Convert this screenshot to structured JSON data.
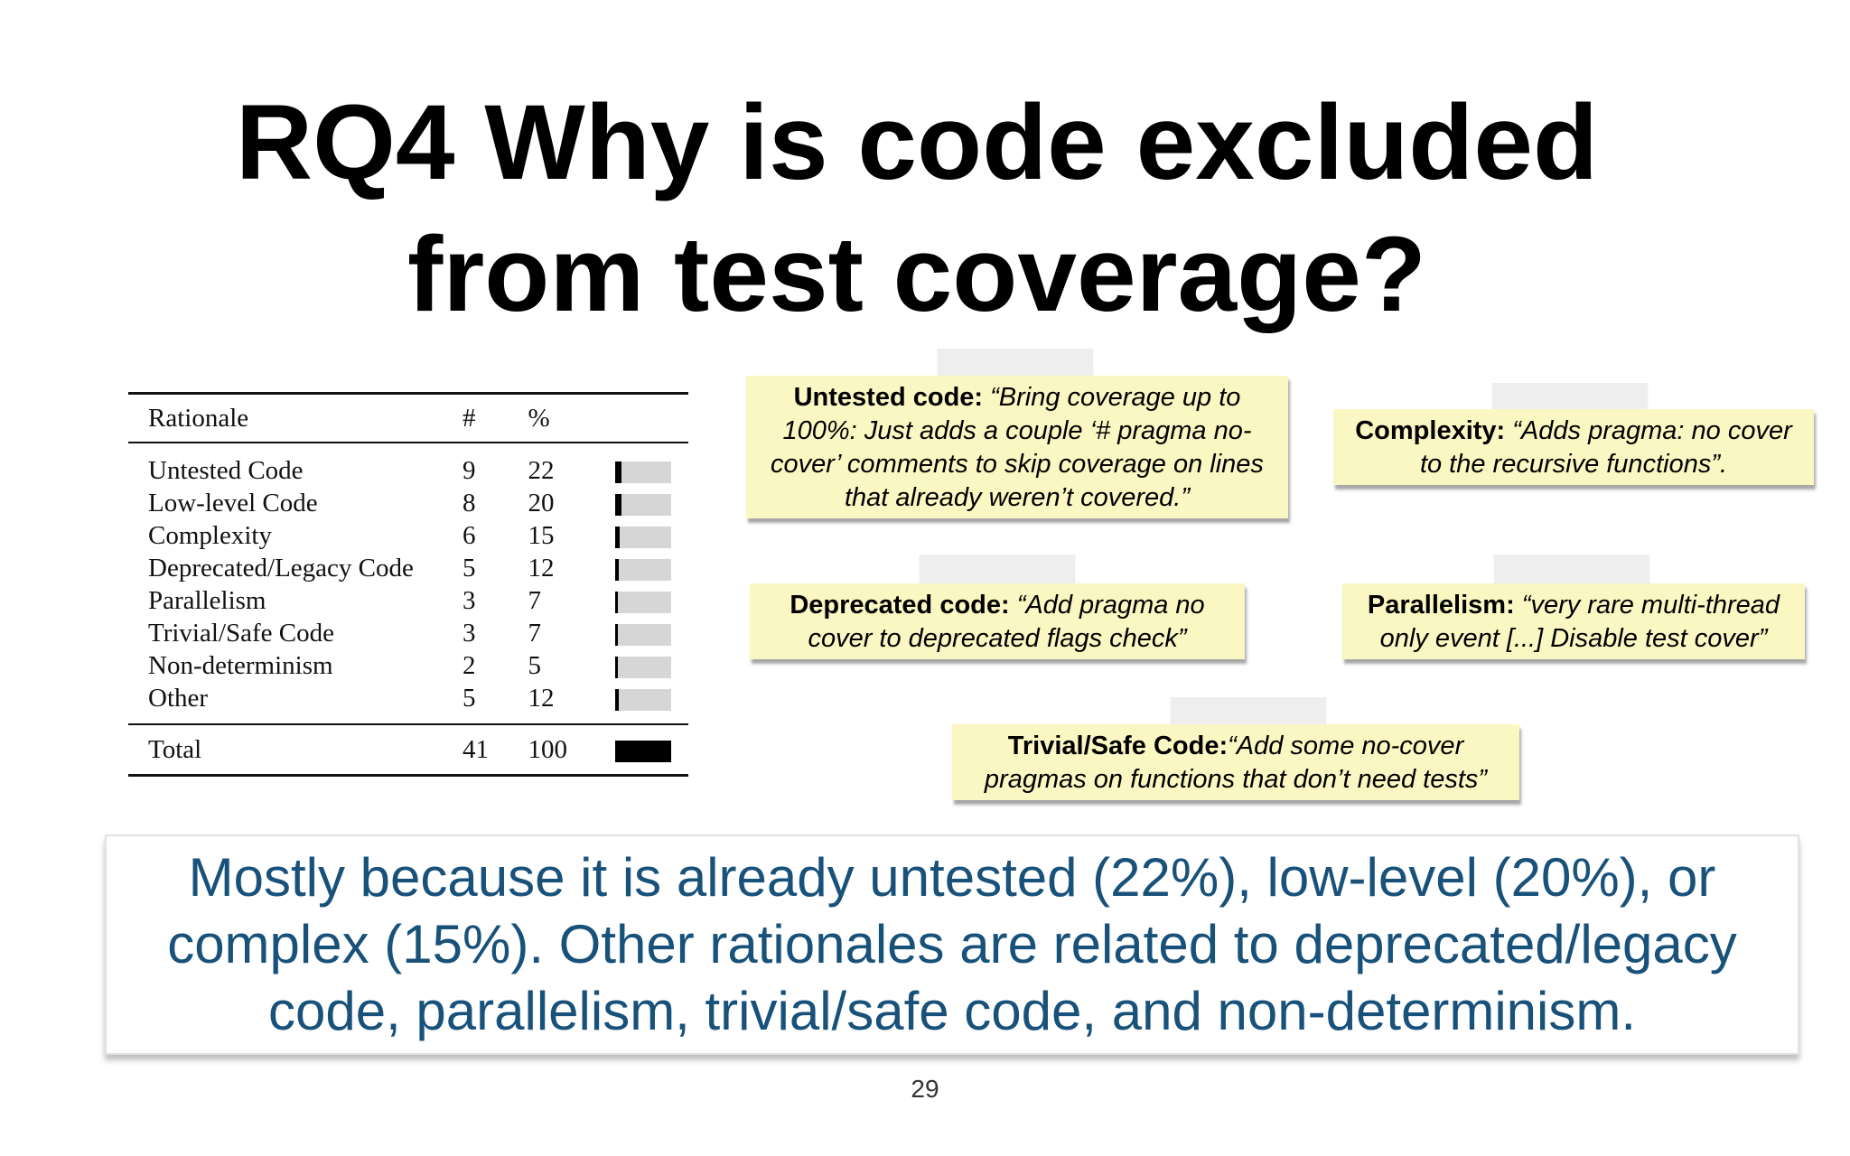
{
  "title": {
    "strong": "RQ4",
    "line1_rest": " Why is code excluded",
    "line2": "from test coverage?"
  },
  "table": {
    "headers": {
      "rationale": "Rationale",
      "count": "#",
      "percent": "%"
    },
    "rows": [
      {
        "name": "Untested Code",
        "count": "9",
        "percent": "22",
        "fraction": 0.22
      },
      {
        "name": "Low-level Code",
        "count": "8",
        "percent": "20",
        "fraction": 0.2
      },
      {
        "name": "Complexity",
        "count": "6",
        "percent": "15",
        "fraction": 0.15
      },
      {
        "name": "Deprecated/Legacy Code",
        "count": "5",
        "percent": "12",
        "fraction": 0.12
      },
      {
        "name": "Parallelism",
        "count": "3",
        "percent": "7",
        "fraction": 0.07
      },
      {
        "name": "Trivial/Safe Code",
        "count": "3",
        "percent": "7",
        "fraction": 0.07
      },
      {
        "name": "Non-determinism",
        "count": "2",
        "percent": "5",
        "fraction": 0.05
      },
      {
        "name": "Other",
        "count": "5",
        "percent": "12",
        "fraction": 0.12
      }
    ],
    "total": {
      "name": "Total",
      "count": "41",
      "percent": "100",
      "fraction": 1.0
    }
  },
  "notes": {
    "untested": {
      "label": "Untested code:",
      "quote": " “Bring coverage up to 100%: Just adds a couple ‘# pragma no-cover’ comments to skip coverage on lines that already weren’t covered.”"
    },
    "complexity": {
      "label": "Complexity:",
      "quote": " “Adds pragma: no cover to the recursive functions”."
    },
    "deprecated": {
      "label": "Deprecated code:",
      "quote": " “Add pragma no cover to deprecated flags check”"
    },
    "parallelism": {
      "label": "Parallelism:",
      "quote": " “very rare multi-thread only event [...] Disable test cover”"
    },
    "trivial": {
      "label": "Trivial/Safe Code:",
      "quote": "“Add some no-cover pragmas on functions that don’t need tests”"
    }
  },
  "summary": "Mostly because it is already untested (22%), low-level (20%), or complex (15%). Other rationales are related to deprecated/legacy code, parallelism, trivial/safe code, and non-determinism.",
  "page_number": "29"
}
